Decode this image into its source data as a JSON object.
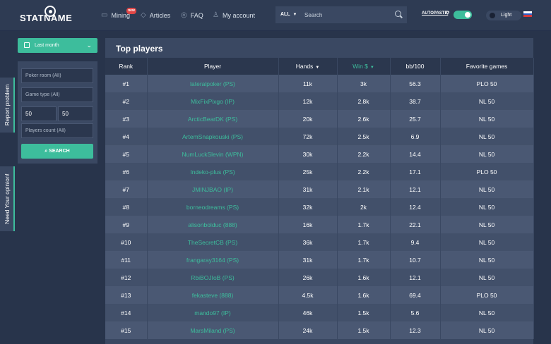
{
  "header": {
    "logo": "STATNAME",
    "nav": [
      {
        "label": "Mining",
        "icon": "monitor-icon",
        "badge": "new"
      },
      {
        "label": "Articles",
        "icon": "diamond-icon"
      },
      {
        "label": "FAQ",
        "icon": "globe-icon"
      },
      {
        "label": "My account",
        "icon": "user-icon"
      }
    ],
    "search": {
      "scope": "ALL",
      "placeholder": "Search"
    },
    "autopaste": "AUTOPASTE",
    "theme": "Light",
    "accent_color": "#3dbd9c"
  },
  "sidebar": {
    "period": "Last month",
    "filters": {
      "poker_room_placeholder": "Poker room (All)",
      "game_type_placeholder": "Game type (All)",
      "min_value": "50",
      "max_value": "50",
      "players_count_placeholder": "Players count (All)",
      "search_label": "SEARCH"
    },
    "tabs": [
      "Report problem",
      "Need Your opinion!"
    ]
  },
  "main": {
    "title": "Top players",
    "columns": [
      "Rank",
      "Player",
      "Hands",
      "Win $",
      "bb/100",
      "Favorite games"
    ],
    "rows": [
      {
        "rank": "#1",
        "player": "lateralpoker (PS)",
        "hands": "11k",
        "win": "3k",
        "bb100": "56.3",
        "games": "PLO 50"
      },
      {
        "rank": "#2",
        "player": "MixFixPixgo (IP)",
        "hands": "12k",
        "win": "2.8k",
        "bb100": "38.7",
        "games": "NL 50"
      },
      {
        "rank": "#3",
        "player": "ArcticBearDK (PS)",
        "hands": "20k",
        "win": "2.6k",
        "bb100": "25.7",
        "games": "NL 50"
      },
      {
        "rank": "#4",
        "player": "ArtemSnapkouski (PS)",
        "hands": "72k",
        "win": "2.5k",
        "bb100": "6.9",
        "games": "NL 50"
      },
      {
        "rank": "#5",
        "player": "NumLuckSlevin (WPN)",
        "hands": "30k",
        "win": "2.2k",
        "bb100": "14.4",
        "games": "NL 50"
      },
      {
        "rank": "#6",
        "player": "Indeko-plus (PS)",
        "hands": "25k",
        "win": "2.2k",
        "bb100": "17.1",
        "games": "PLO 50"
      },
      {
        "rank": "#7",
        "player": "JMINJBAO (IP)",
        "hands": "31k",
        "win": "2.1k",
        "bb100": "12.1",
        "games": "NL 50"
      },
      {
        "rank": "#8",
        "player": "borneodreams (PS)",
        "hands": "32k",
        "win": "2k",
        "bb100": "12.4",
        "games": "NL 50"
      },
      {
        "rank": "#9",
        "player": "alisonbolduc (888)",
        "hands": "16k",
        "win": "1.7k",
        "bb100": "22.1",
        "games": "NL 50"
      },
      {
        "rank": "#10",
        "player": "TheSecretCB (PS)",
        "hands": "36k",
        "win": "1.7k",
        "bb100": "9.4",
        "games": "NL 50"
      },
      {
        "rank": "#11",
        "player": "frangaray3164 (PS)",
        "hands": "31k",
        "win": "1.7k",
        "bb100": "10.7",
        "games": "NL 50"
      },
      {
        "rank": "#12",
        "player": "RbiBOJIoB (PS)",
        "hands": "26k",
        "win": "1.6k",
        "bb100": "12.1",
        "games": "NL 50"
      },
      {
        "rank": "#13",
        "player": "fekasteve (888)",
        "hands": "4.5k",
        "win": "1.6k",
        "bb100": "69.4",
        "games": "PLO 50"
      },
      {
        "rank": "#14",
        "player": "mando97 (IP)",
        "hands": "46k",
        "win": "1.5k",
        "bb100": "5.6",
        "games": "NL 50"
      },
      {
        "rank": "#15",
        "player": "MarsMiland (PS)",
        "hands": "24k",
        "win": "1.5k",
        "bb100": "12.3",
        "games": "NL 50"
      }
    ]
  }
}
